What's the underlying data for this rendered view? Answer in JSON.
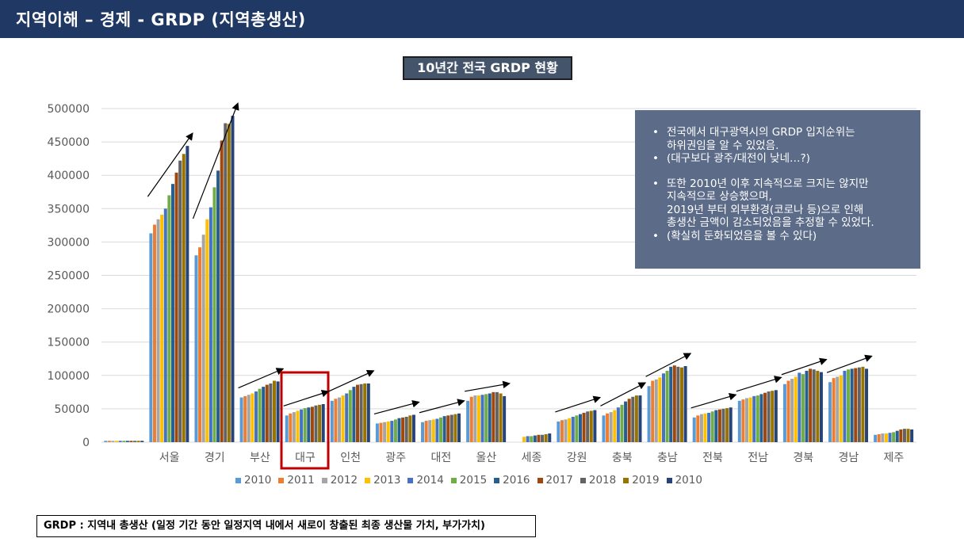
{
  "header": {
    "title": "지역이해 – 경제 - GRDP (지역총생산)"
  },
  "chart_title": "10년간 전국 GRDP 현황",
  "notes": {
    "bullets": [
      [
        "전국에서 대구광역시의 GRDP 입지순위는",
        "하위권임을 알 수 있었음."
      ],
      [
        "(대구보다 광주/대전이 낮네…?)"
      ],
      null,
      [
        "또한 2010년 이후 지속적으로 크지는 않지만",
        "지속적으로 상승했으며,",
        "2019년 부터 외부환경(코로나 등)으로 인해",
        "총생산 금액이 감소되었음을 추정할 수 있었다."
      ],
      [
        "(확실히 둔화되었음을 볼 수 있다)"
      ]
    ],
    "bullet_char": "•"
  },
  "footer": {
    "text": "GRDP : 지역내 총생산 (일정 기간 동안 일정지역 내에서 새로이 창출된 최종 생산물 가치, 부가가치)"
  },
  "chart_data": {
    "type": "bar",
    "title": "10년간 전국 GRDP 현황",
    "xlabel": "",
    "ylabel": "",
    "ylim": [
      0,
      500000
    ],
    "yticks": [
      0,
      50000,
      100000,
      150000,
      200000,
      250000,
      300000,
      350000,
      400000,
      450000,
      500000
    ],
    "grid": true,
    "legend_position": "bottom",
    "categories": [
      "",
      "서울",
      "경기",
      "부산",
      "대구",
      "인천",
      "광주",
      "대전",
      "울산",
      "세종",
      "강원",
      "충북",
      "충남",
      "전북",
      "전남",
      "경북",
      "경남",
      "제주"
    ],
    "highlight_category": "대구",
    "series": [
      {
        "name": "2010",
        "color": "#5b9bd5",
        "values": [
          2000,
          313000,
          280000,
          67000,
          40000,
          62000,
          28000,
          30000,
          62000,
          0,
          31000,
          40000,
          84000,
          37000,
          62000,
          87000,
          90000,
          11000
        ]
      },
      {
        "name": "2011",
        "color": "#ed7d31",
        "values": [
          2000,
          326000,
          292000,
          69000,
          43000,
          65000,
          29000,
          32000,
          68000,
          0,
          33000,
          43000,
          92000,
          40000,
          64000,
          92000,
          96000,
          12000
        ]
      },
      {
        "name": "2012",
        "color": "#a5a5a5",
        "values": [
          2000,
          334000,
          311000,
          71000,
          45000,
          67000,
          30000,
          33000,
          70000,
          0,
          34000,
          45000,
          94000,
          42000,
          66000,
          95000,
          98000,
          13000
        ]
      },
      {
        "name": "2013",
        "color": "#ffc000",
        "values": [
          2000,
          341000,
          334000,
          73000,
          47000,
          70000,
          31000,
          34000,
          70000,
          8000,
          36000,
          48000,
          97000,
          43000,
          67000,
          98000,
          100000,
          13000
        ]
      },
      {
        "name": "2014",
        "color": "#4472c4",
        "values": [
          2000,
          350000,
          352000,
          76000,
          49000,
          73000,
          32000,
          35000,
          71000,
          9000,
          38000,
          52000,
          103000,
          44000,
          69000,
          104000,
          107000,
          14000
        ]
      },
      {
        "name": "2015",
        "color": "#70ad47",
        "values": [
          2000,
          370000,
          382000,
          80000,
          51000,
          78000,
          34000,
          37000,
          72000,
          9000,
          40000,
          56000,
          107000,
          46000,
          70000,
          102000,
          109000,
          15000
        ]
      },
      {
        "name": "2016",
        "color": "#255e91",
        "values": [
          2000,
          387000,
          407000,
          83000,
          52000,
          83000,
          36000,
          39000,
          73000,
          10000,
          42000,
          61000,
          113000,
          48000,
          72000,
          107000,
          110000,
          17000
        ]
      },
      {
        "name": "2017",
        "color": "#9e480e",
        "values": [
          2000,
          404000,
          452000,
          86000,
          53000,
          86000,
          37000,
          40000,
          75000,
          11000,
          44000,
          65000,
          115000,
          49000,
          74000,
          110000,
          111000,
          19000
        ]
      },
      {
        "name": "2018",
        "color": "#636363",
        "values": [
          2000,
          422000,
          478000,
          88000,
          55000,
          87000,
          38000,
          41000,
          75000,
          11000,
          46000,
          68000,
          113000,
          50000,
          76000,
          109000,
          112000,
          20000
        ]
      },
      {
        "name": "2019",
        "color": "#997300",
        "values": [
          2000,
          432000,
          477000,
          92000,
          56000,
          88000,
          40000,
          42000,
          73000,
          12000,
          47000,
          70000,
          112000,
          51000,
          77000,
          107000,
          113000,
          20000
        ]
      },
      {
        "name": "2010",
        "color": "#264478",
        "values": [
          2000,
          444000,
          489000,
          91000,
          57000,
          88000,
          41000,
          43000,
          69000,
          13000,
          48000,
          70000,
          114000,
          52000,
          78000,
          105000,
          110000,
          19000
        ]
      }
    ],
    "annotations": {
      "trend_arrows_categories": [
        "서울",
        "경기",
        "부산",
        "대구",
        "인천",
        "광주",
        "대전",
        "울산",
        "강원",
        "충북",
        "충남",
        "전북",
        "전남",
        "경북",
        "경남"
      ]
    }
  }
}
